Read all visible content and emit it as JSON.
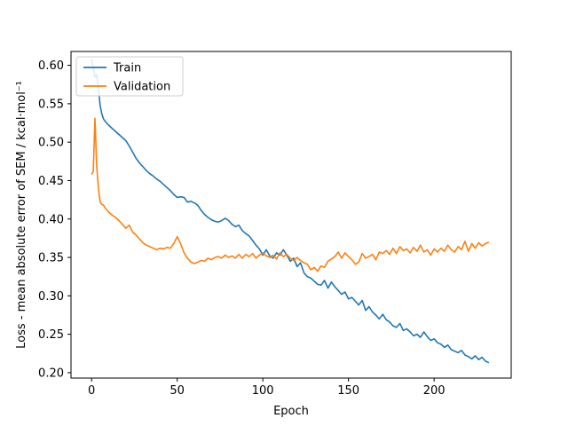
{
  "chart_data": {
    "type": "line",
    "xlabel": "Epoch",
    "ylabel": "Loss - mean absolute error of SEM / kcal·mol⁻¹",
    "xlim": [
      -12,
      245
    ],
    "ylim": [
      0.193,
      0.618
    ],
    "xticks": [
      0,
      50,
      100,
      150,
      200
    ],
    "yticks": [
      0.2,
      0.25,
      0.3,
      0.35,
      0.4,
      0.45,
      0.5,
      0.55,
      0.6
    ],
    "grid": false,
    "legend_position": "top-left",
    "series": [
      {
        "name": "Train",
        "color": "#1f77b4",
        "x": [
          0,
          1,
          2,
          3,
          4,
          5,
          6,
          7,
          8,
          10,
          12,
          14,
          16,
          18,
          20,
          22,
          24,
          26,
          28,
          30,
          32,
          34,
          36,
          38,
          40,
          42,
          44,
          46,
          48,
          50,
          52,
          54,
          56,
          58,
          60,
          62,
          64,
          66,
          68,
          70,
          72,
          74,
          76,
          78,
          80,
          82,
          84,
          86,
          88,
          90,
          92,
          94,
          96,
          98,
          100,
          102,
          104,
          106,
          108,
          110,
          112,
          114,
          116,
          118,
          120,
          122,
          124,
          126,
          128,
          130,
          132,
          134,
          136,
          138,
          140,
          142,
          144,
          146,
          148,
          150,
          152,
          154,
          156,
          158,
          160,
          162,
          164,
          166,
          168,
          170,
          172,
          174,
          176,
          178,
          180,
          182,
          184,
          186,
          188,
          190,
          192,
          194,
          196,
          198,
          200,
          202,
          204,
          206,
          208,
          210,
          212,
          214,
          216,
          218,
          220,
          222,
          224,
          226,
          228,
          230,
          232
        ],
        "values": [
          0.608,
          0.596,
          0.585,
          0.588,
          0.57,
          0.548,
          0.537,
          0.53,
          0.527,
          0.522,
          0.518,
          0.514,
          0.51,
          0.506,
          0.502,
          0.495,
          0.487,
          0.479,
          0.473,
          0.468,
          0.463,
          0.459,
          0.456,
          0.452,
          0.449,
          0.445,
          0.441,
          0.437,
          0.432,
          0.428,
          0.429,
          0.428,
          0.422,
          0.423,
          0.421,
          0.418,
          0.411,
          0.406,
          0.402,
          0.399,
          0.397,
          0.396,
          0.398,
          0.401,
          0.398,
          0.393,
          0.39,
          0.392,
          0.385,
          0.381,
          0.378,
          0.372,
          0.366,
          0.361,
          0.353,
          0.36,
          0.352,
          0.349,
          0.356,
          0.353,
          0.36,
          0.353,
          0.345,
          0.349,
          0.338,
          0.343,
          0.33,
          0.325,
          0.323,
          0.319,
          0.315,
          0.314,
          0.32,
          0.31,
          0.318,
          0.312,
          0.307,
          0.302,
          0.305,
          0.296,
          0.298,
          0.293,
          0.288,
          0.294,
          0.281,
          0.286,
          0.279,
          0.275,
          0.27,
          0.276,
          0.269,
          0.266,
          0.261,
          0.259,
          0.264,
          0.255,
          0.257,
          0.253,
          0.248,
          0.25,
          0.246,
          0.253,
          0.247,
          0.242,
          0.244,
          0.239,
          0.237,
          0.233,
          0.236,
          0.23,
          0.228,
          0.226,
          0.229,
          0.223,
          0.221,
          0.218,
          0.222,
          0.217,
          0.22,
          0.215,
          0.213
        ]
      },
      {
        "name": "Validation",
        "color": "#ff7f0e",
        "x": [
          0,
          1,
          2,
          3,
          4,
          5,
          6,
          7,
          8,
          10,
          12,
          14,
          16,
          18,
          20,
          22,
          24,
          26,
          28,
          30,
          32,
          34,
          36,
          38,
          40,
          42,
          44,
          46,
          48,
          50,
          52,
          54,
          56,
          58,
          60,
          62,
          64,
          66,
          68,
          70,
          72,
          74,
          76,
          78,
          80,
          82,
          84,
          86,
          88,
          90,
          92,
          94,
          96,
          98,
          100,
          102,
          104,
          106,
          108,
          110,
          112,
          114,
          116,
          118,
          120,
          122,
          124,
          126,
          128,
          130,
          132,
          134,
          136,
          138,
          140,
          142,
          144,
          146,
          148,
          150,
          152,
          154,
          156,
          158,
          160,
          162,
          164,
          166,
          168,
          170,
          172,
          174,
          176,
          178,
          180,
          182,
          184,
          186,
          188,
          190,
          192,
          194,
          196,
          198,
          200,
          202,
          204,
          206,
          208,
          210,
          212,
          214,
          216,
          218,
          220,
          222,
          224,
          226,
          228,
          230,
          232
        ],
        "values": [
          0.458,
          0.462,
          0.531,
          0.47,
          0.44,
          0.422,
          0.419,
          0.418,
          0.414,
          0.409,
          0.405,
          0.402,
          0.398,
          0.393,
          0.388,
          0.392,
          0.383,
          0.379,
          0.374,
          0.369,
          0.366,
          0.364,
          0.362,
          0.36,
          0.362,
          0.361,
          0.363,
          0.362,
          0.368,
          0.377,
          0.368,
          0.356,
          0.349,
          0.344,
          0.342,
          0.344,
          0.346,
          0.345,
          0.349,
          0.347,
          0.35,
          0.351,
          0.349,
          0.353,
          0.35,
          0.352,
          0.349,
          0.354,
          0.349,
          0.354,
          0.351,
          0.355,
          0.349,
          0.353,
          0.356,
          0.352,
          0.35,
          0.353,
          0.348,
          0.356,
          0.351,
          0.354,
          0.349,
          0.346,
          0.35,
          0.346,
          0.343,
          0.341,
          0.334,
          0.337,
          0.332,
          0.339,
          0.337,
          0.345,
          0.348,
          0.351,
          0.357,
          0.349,
          0.356,
          0.351,
          0.347,
          0.341,
          0.344,
          0.355,
          0.349,
          0.351,
          0.354,
          0.347,
          0.357,
          0.355,
          0.359,
          0.354,
          0.362,
          0.355,
          0.364,
          0.359,
          0.361,
          0.356,
          0.363,
          0.358,
          0.366,
          0.357,
          0.36,
          0.353,
          0.361,
          0.357,
          0.362,
          0.358,
          0.366,
          0.36,
          0.357,
          0.364,
          0.36,
          0.371,
          0.358,
          0.368,
          0.362,
          0.369,
          0.365,
          0.368,
          0.37
        ]
      }
    ]
  }
}
